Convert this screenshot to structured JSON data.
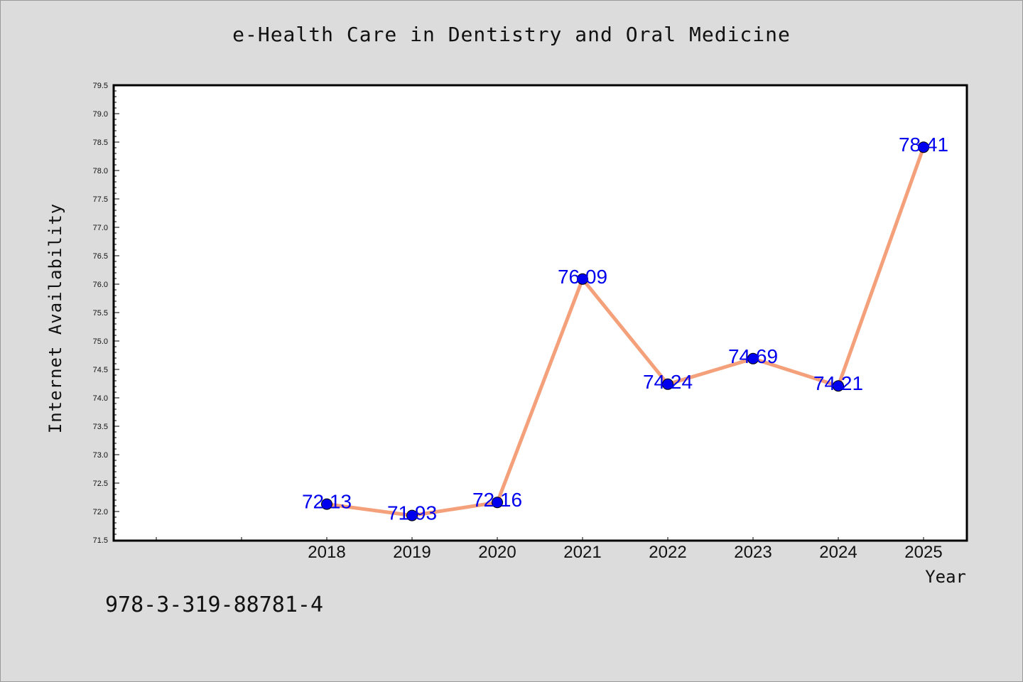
{
  "chart_data": {
    "type": "line",
    "title": "e-Health Care in Dentistry and Oral Medicine",
    "xlabel": "Year",
    "ylabel": "Internet Availability",
    "categories": [
      "2018",
      "2019",
      "2020",
      "2021",
      "2022",
      "2023",
      "2024",
      "2025"
    ],
    "values": [
      72.13,
      71.93,
      72.16,
      76.09,
      74.24,
      74.69,
      74.21,
      78.41
    ],
    "value_labels": [
      "72.13",
      "71.93",
      "72.16",
      "76.09",
      "74.24",
      "74.69",
      "74.21",
      "78.41"
    ],
    "ylim": [
      71.5,
      79.5
    ],
    "yticks": [
      "71.5",
      "72.0",
      "72.5",
      "73.0",
      "73.5",
      "74.0",
      "74.5",
      "75.0",
      "75.5",
      "76.0",
      "76.5",
      "77.0",
      "77.5",
      "78.0",
      "78.5",
      "79.0",
      "79.5"
    ],
    "grid": false,
    "line_color": "#f4a07a",
    "marker_color": "#0000ee",
    "label_color": "#0000ee"
  },
  "footer": {
    "code": "978-3-319-88781-4"
  }
}
